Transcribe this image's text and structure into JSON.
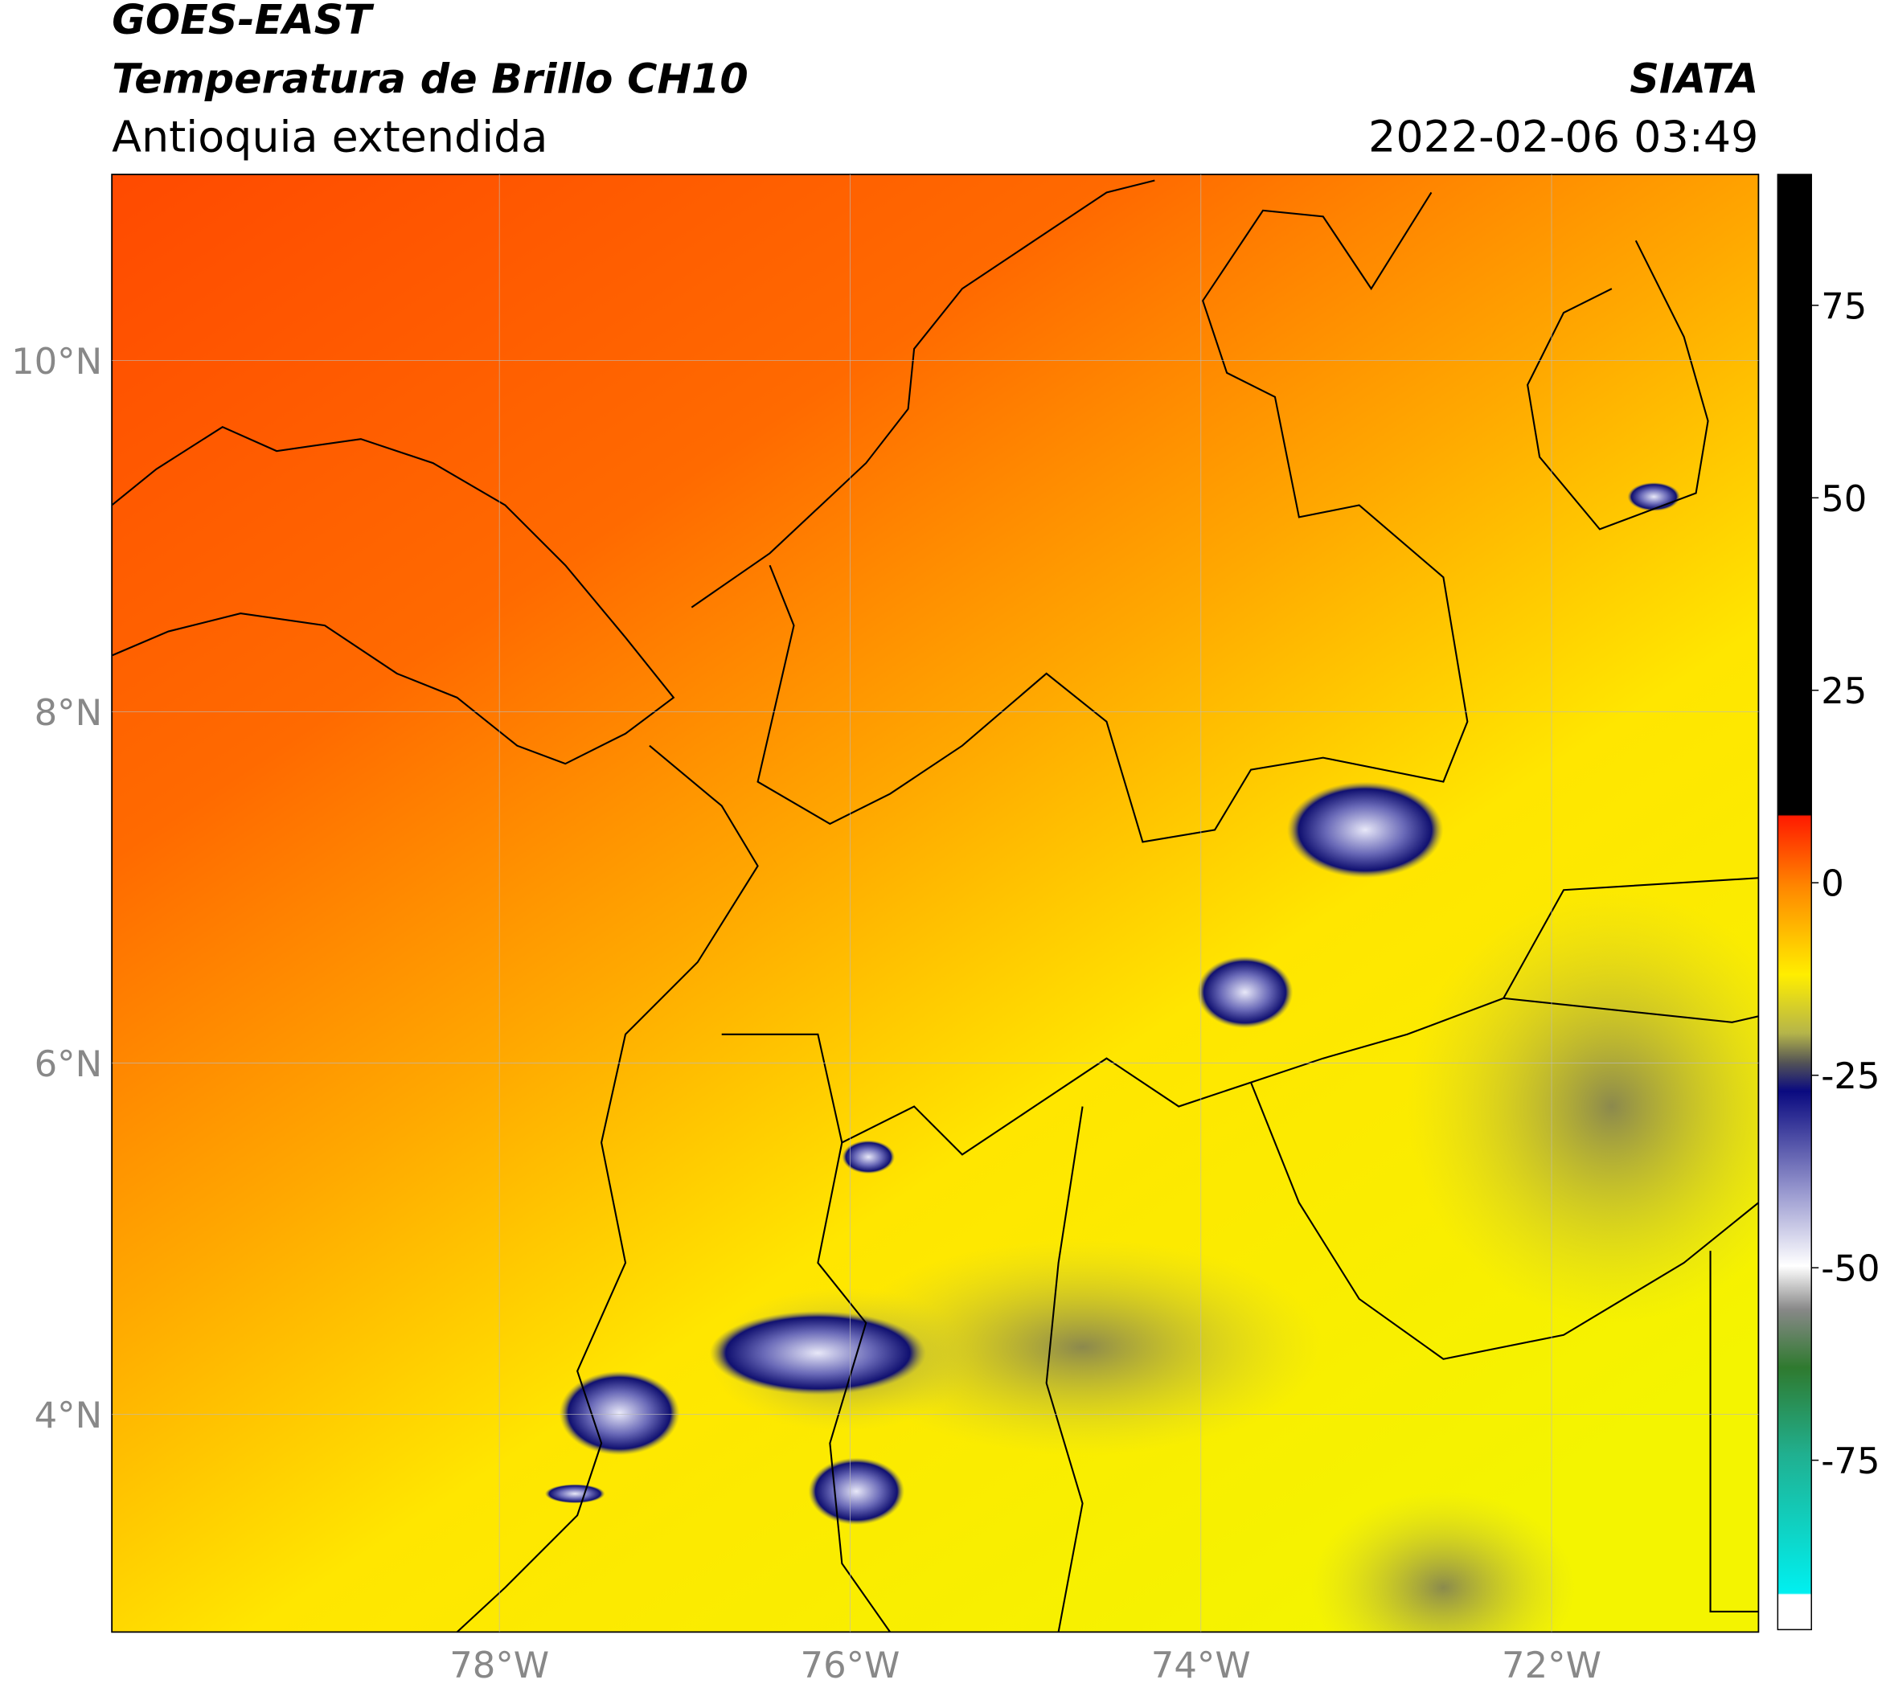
{
  "header": {
    "title": "GOES-EAST",
    "subtitle": "Temperatura de Brillo CH10",
    "region": "Antioquia extendida",
    "source": "SIATA",
    "datetime": "2022-02-06 03:49"
  },
  "map": {
    "xlim": [
      -80.21,
      -70.82
    ],
    "ylim": [
      2.76,
      11.06
    ],
    "xticks": [
      {
        "value": -78,
        "label": "78°W"
      },
      {
        "value": -76,
        "label": "76°W"
      },
      {
        "value": -74,
        "label": "74°W"
      },
      {
        "value": -72,
        "label": "72°W"
      }
    ],
    "yticks": [
      {
        "value": 4,
        "label": "4°N"
      },
      {
        "value": 6,
        "label": "6°N"
      },
      {
        "value": 8,
        "label": "8°N"
      },
      {
        "value": 10,
        "label": "10°N"
      }
    ]
  },
  "colorbar": {
    "clim": [
      -97,
      92
    ],
    "ticks": [
      75,
      50,
      25,
      0,
      -25,
      -50,
      -75
    ]
  }
}
